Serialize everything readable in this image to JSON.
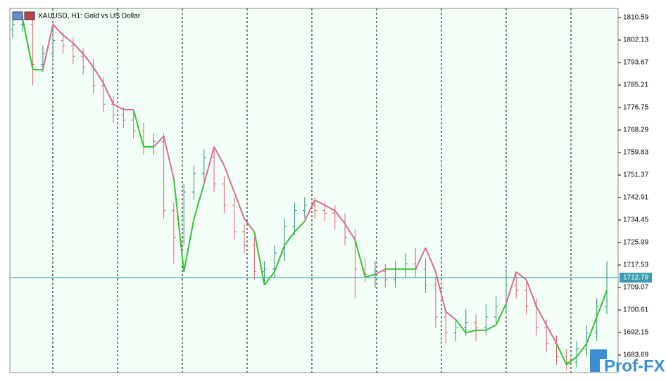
{
  "chart_data": {
    "type": "ohlc",
    "title": "XAUUSD, H1:  Gold vs US Dollar",
    "watermark": "Prof-FX",
    "up_color": "#2e8b77",
    "down_color": "#e0606a",
    "line_up_color": "#33c233",
    "line_down_color": "#d86a8c",
    "price_line_color": "#3a9bb0",
    "current_price": 1712.79,
    "ylim": [
      1677.08,
      1814.03
    ],
    "yticks": [
      1810.59,
      1802.13,
      1793.67,
      1785.21,
      1776.75,
      1768.29,
      1759.83,
      1751.37,
      1742.91,
      1734.45,
      1725.99,
      1717.53,
      1709.07,
      1700.61,
      1692.15,
      1683.69
    ],
    "open": [
      1806,
      1808,
      1808,
      1793,
      1797,
      1802,
      1800,
      1796,
      1792,
      1785,
      1778,
      1774,
      1772,
      1768,
      1762,
      1764,
      1738,
      1728,
      1745,
      1752,
      1758,
      1748,
      1740,
      1730,
      1725,
      1715,
      1716,
      1722,
      1732,
      1738,
      1740,
      1738,
      1737,
      1734,
      1728,
      1716,
      1714,
      1715,
      1712,
      1716,
      1718,
      1716,
      1710,
      1698,
      1692,
      1694,
      1696,
      1694,
      1698,
      1702,
      1710,
      1708,
      1702,
      1694,
      1688,
      1683,
      1681,
      1686,
      1692,
      1702
    ],
    "high": [
      1811,
      1811,
      1811,
      1800,
      1809,
      1805,
      1803,
      1799,
      1795,
      1788,
      1781,
      1777,
      1775,
      1771,
      1767,
      1767,
      1741,
      1748,
      1755,
      1761,
      1761,
      1751,
      1743,
      1733,
      1728,
      1719,
      1725,
      1735,
      1741,
      1743,
      1743,
      1741,
      1740,
      1737,
      1731,
      1720,
      1719,
      1718,
      1719,
      1722,
      1724,
      1720,
      1713,
      1701,
      1697,
      1701,
      1699,
      1703,
      1706,
      1716,
      1714,
      1711,
      1705,
      1697,
      1691,
      1686,
      1689,
      1695,
      1705,
      1719
    ],
    "low": [
      1803,
      1805,
      1785,
      1790,
      1794,
      1797,
      1793,
      1789,
      1782,
      1775,
      1771,
      1769,
      1765,
      1759,
      1759,
      1735,
      1718,
      1725,
      1742,
      1749,
      1745,
      1737,
      1727,
      1722,
      1712,
      1710,
      1713,
      1719,
      1729,
      1735,
      1735,
      1734,
      1731,
      1725,
      1705,
      1711,
      1709,
      1709,
      1709,
      1713,
      1713,
      1707,
      1694,
      1688,
      1689,
      1691,
      1689,
      1691,
      1695,
      1699,
      1705,
      1699,
      1691,
      1685,
      1680,
      1678,
      1679,
      1683,
      1689,
      1699
    ],
    "close": [
      1808,
      1808,
      1793,
      1797,
      1802,
      1800,
      1796,
      1792,
      1785,
      1778,
      1774,
      1772,
      1768,
      1762,
      1764,
      1738,
      1728,
      1745,
      1752,
      1758,
      1748,
      1740,
      1730,
      1725,
      1715,
      1716,
      1722,
      1732,
      1738,
      1740,
      1738,
      1737,
      1734,
      1728,
      1716,
      1714,
      1715,
      1712,
      1716,
      1718,
      1716,
      1710,
      1698,
      1692,
      1694,
      1696,
      1694,
      1698,
      1702,
      1710,
      1708,
      1702,
      1694,
      1688,
      1683,
      1681,
      1686,
      1692,
      1702,
      1712.79
    ],
    "line": [
      1810,
      1810,
      1791,
      1791,
      1808,
      1804,
      1801,
      1797,
      1792,
      1786,
      1778,
      1776,
      1776,
      1762,
      1762,
      1766,
      1750,
      1715,
      1735,
      1748,
      1762,
      1755,
      1745,
      1735,
      1730,
      1710,
      1715,
      1725,
      1730,
      1734,
      1742,
      1740,
      1738,
      1733,
      1727,
      1713,
      1714,
      1716,
      1716,
      1716,
      1716,
      1724,
      1715,
      1700,
      1697,
      1692,
      1693,
      1693,
      1695,
      1703,
      1715,
      1712,
      1702,
      1695,
      1688,
      1680,
      1683,
      1688,
      1698,
      1708
    ]
  }
}
